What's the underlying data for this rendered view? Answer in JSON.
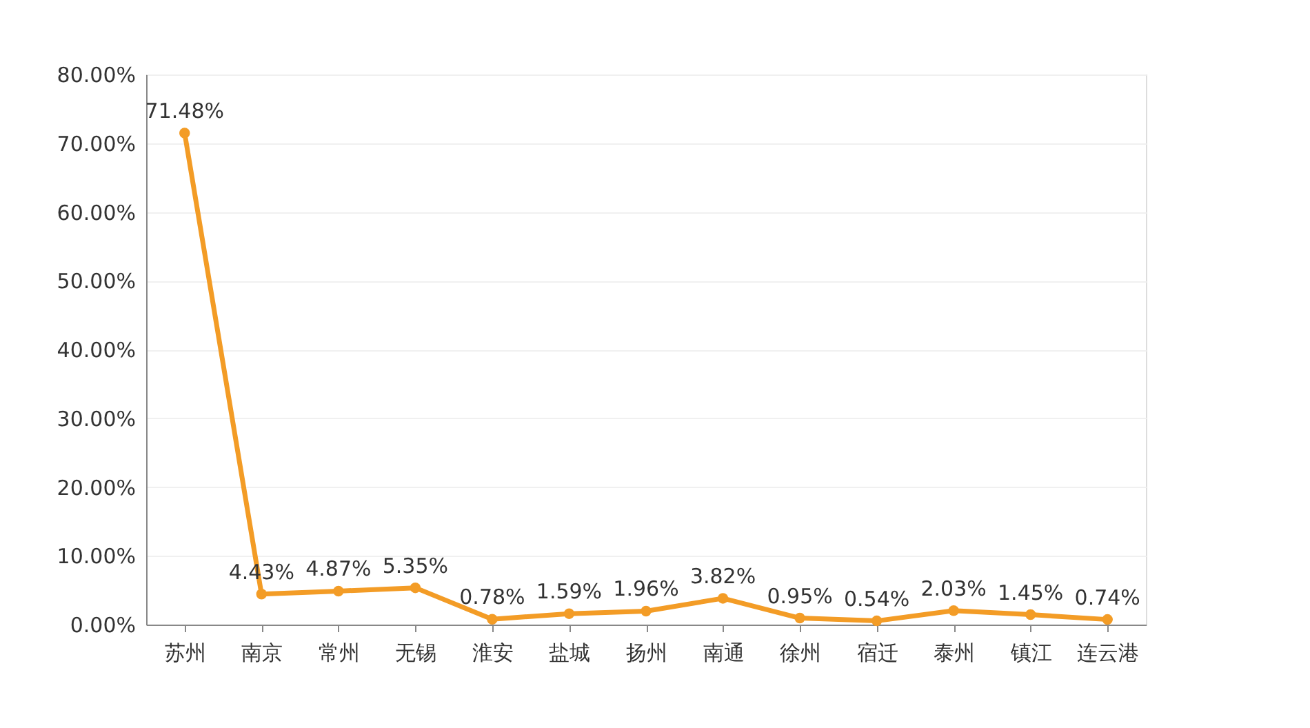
{
  "chart_data": {
    "type": "line",
    "categories": [
      "苏州",
      "南京",
      "常州",
      "无锡",
      "淮安",
      "盐城",
      "扬州",
      "南通",
      "徐州",
      "宿迁",
      "泰州",
      "镇江",
      "连云港"
    ],
    "series": [
      {
        "color": "#f39c26",
        "values": [
          71.48,
          4.43,
          4.87,
          5.35,
          0.78,
          1.59,
          1.96,
          3.82,
          0.95,
          0.54,
          2.03,
          1.45,
          0.74
        ],
        "value_labels": [
          "71.48%",
          "4.43%",
          "4.87%",
          "5.35%",
          "0.78%",
          "1.59%",
          "1.96%",
          "3.82%",
          "0.95%",
          "0.54%",
          "2.03%",
          "1.45%",
          "0.74%"
        ]
      }
    ],
    "ylim": [
      0,
      80
    ],
    "yticks": [
      {
        "value": 0,
        "label": "0.00%"
      },
      {
        "value": 10,
        "label": "10.00%"
      },
      {
        "value": 20,
        "label": "20.00%"
      },
      {
        "value": 30,
        "label": "30.00%"
      },
      {
        "value": 40,
        "label": "40.00%"
      },
      {
        "value": 50,
        "label": "50.00%"
      },
      {
        "value": 60,
        "label": "60.00%"
      },
      {
        "value": 70,
        "label": "70.00%"
      },
      {
        "value": 80,
        "label": "80.00%"
      }
    ],
    "grid": "y",
    "marker": "circle",
    "line_style": "solid"
  }
}
